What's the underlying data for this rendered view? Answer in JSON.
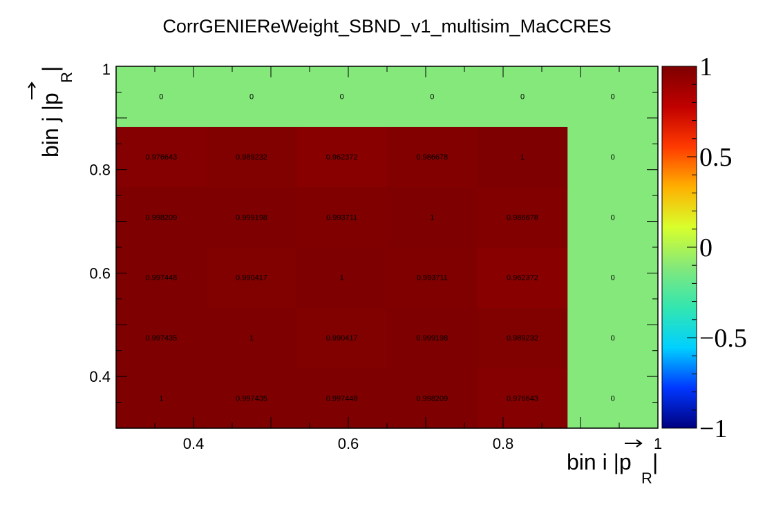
{
  "chart_data": {
    "type": "heatmap",
    "title": "CorrGENIEReWeight_SBND_v1_multisim_MaCCRES",
    "xlabel": {
      "main": "bin i |",
      "symbol": "p",
      "subscript": "R",
      "close": "|"
    },
    "ylabel": {
      "main": "bin j |",
      "symbol": "p",
      "subscript": "R",
      "close": "|"
    },
    "xlim": [
      0.3,
      1.0
    ],
    "ylim": [
      0.3,
      1.0
    ],
    "zlim": [
      -1,
      1
    ],
    "x_ticks": [
      {
        "value": 0.4,
        "label": "0.4"
      },
      {
        "value": 0.6,
        "label": "0.6"
      },
      {
        "value": 0.8,
        "label": "0.8"
      },
      {
        "value": 1.0,
        "label": "1"
      }
    ],
    "y_ticks": [
      {
        "value": 0.4,
        "label": "0.4"
      },
      {
        "value": 0.6,
        "label": "0.6"
      },
      {
        "value": 0.8,
        "label": "0.8"
      },
      {
        "value": 1.0,
        "label": "1"
      }
    ],
    "z_ticks": [
      {
        "value": 1,
        "label": "1"
      },
      {
        "value": 0.5,
        "label": "0.5"
      },
      {
        "value": 0,
        "label": "0"
      },
      {
        "value": -0.5,
        "label": "−0.5"
      },
      {
        "value": -1,
        "label": "−1"
      }
    ],
    "x_bins": [
      0.3,
      0.4167,
      0.5333,
      0.65,
      0.7667,
      0.8833,
      1.0
    ],
    "y_bins": [
      0.3,
      0.4167,
      0.5333,
      0.65,
      0.7667,
      0.8833,
      1.0
    ],
    "cells": [
      [
        "1",
        "0.997435",
        "0.997448",
        "0.998209",
        "0.976643",
        "0"
      ],
      [
        "0.997435",
        "1",
        "0.990417",
        "0.999198",
        "0.989232",
        "0"
      ],
      [
        "0.997448",
        "0.990417",
        "1",
        "0.993711",
        "0.962372",
        "0"
      ],
      [
        "0.998209",
        "0.999198",
        "0.993711",
        "1",
        "0.986678",
        "0"
      ],
      [
        "0.976643",
        "0.989232",
        "0.962372",
        "0.986678",
        "1",
        "0"
      ],
      [
        "0",
        "0",
        "0",
        "0",
        "0",
        "0"
      ]
    ],
    "colors": {
      "zero_cell": "#84e87a",
      "palette": [
        "#00007e",
        "#0037ff",
        "#00d0ff",
        "#33e6b0",
        "#84e87a",
        "#d8ff2c",
        "#ffb000",
        "#ff3a00",
        "#c00000",
        "#7e0000"
      ]
    },
    "grid": false,
    "legend": "right"
  }
}
